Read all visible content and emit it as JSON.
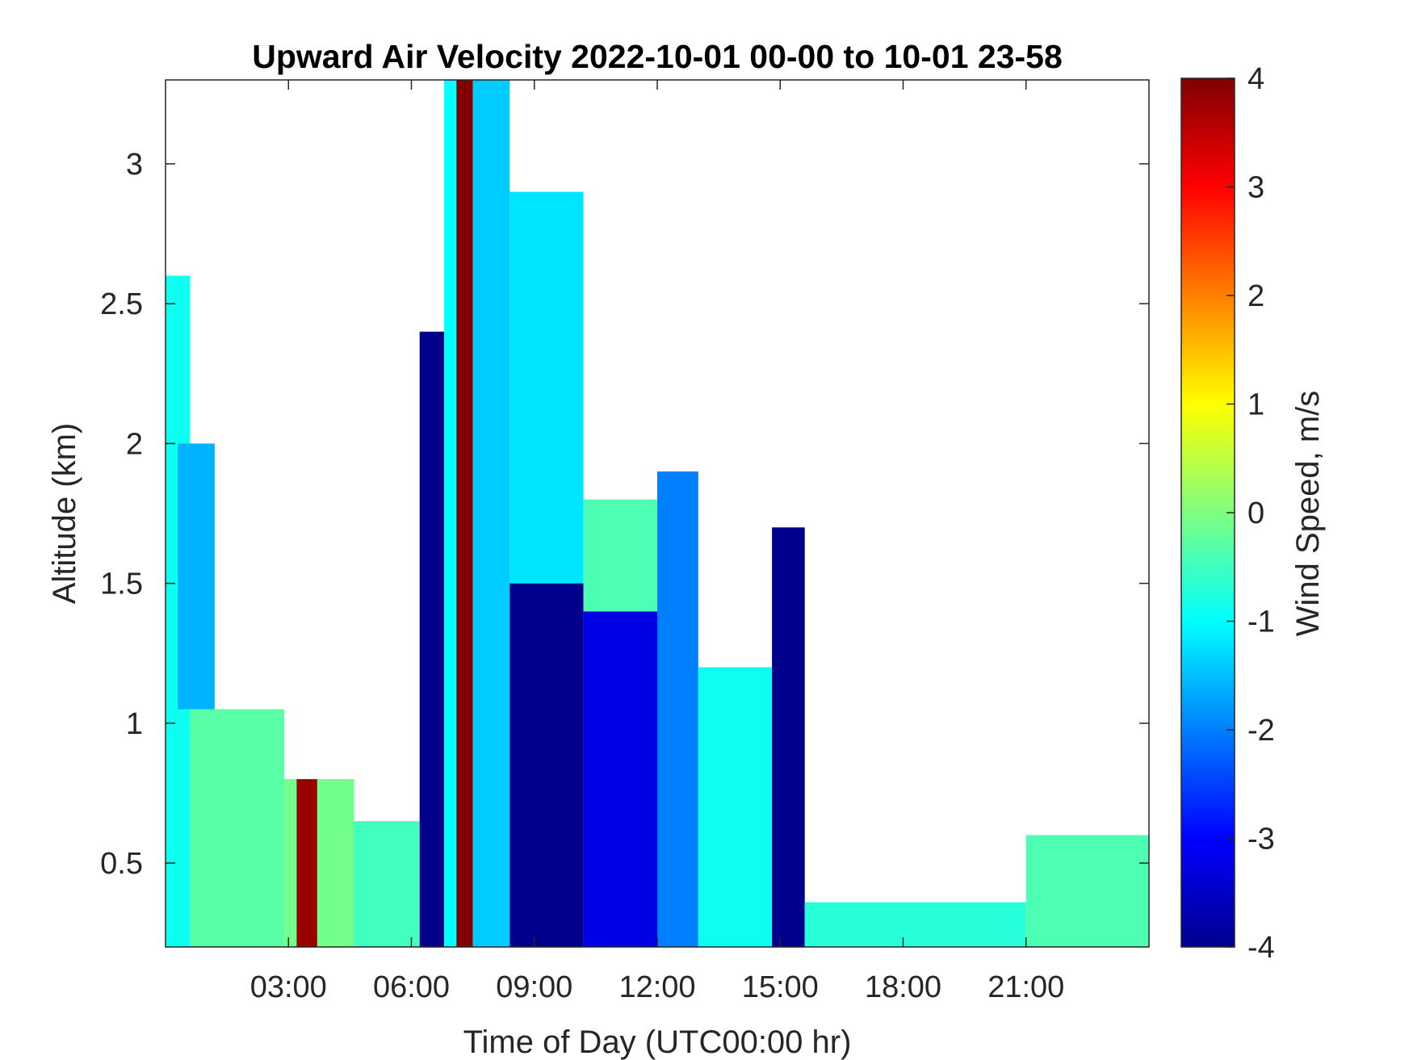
{
  "chart_data": {
    "type": "heatmap",
    "title": "Upward Air Velocity 2022-10-01 00-00 to 10-01 23-58",
    "xlabel": "Time of Day (UTC00:00 hr)",
    "ylabel": "Altitude (km)",
    "xlim_hours": [
      0,
      24
    ],
    "ylim_km": [
      0.2,
      3.3
    ],
    "x_ticks": [
      {
        "value": 3,
        "label": "03:00"
      },
      {
        "value": 6,
        "label": "06:00"
      },
      {
        "value": 9,
        "label": "09:00"
      },
      {
        "value": 12,
        "label": "12:00"
      },
      {
        "value": 15,
        "label": "15:00"
      },
      {
        "value": 18,
        "label": "18:00"
      },
      {
        "value": 21,
        "label": "21:00"
      }
    ],
    "y_ticks": [
      {
        "value": 0.5,
        "label": "0.5"
      },
      {
        "value": 1,
        "label": "1"
      },
      {
        "value": 1.5,
        "label": "1.5"
      },
      {
        "value": 2,
        "label": "2"
      },
      {
        "value": 2.5,
        "label": "2.5"
      },
      {
        "value": 3,
        "label": "3"
      }
    ],
    "colorbar": {
      "label": "Wind Speed, m/s",
      "range": [
        -4,
        4
      ],
      "colormap": "jet",
      "ticks": [
        {
          "value": 4,
          "label": "4"
        },
        {
          "value": 3,
          "label": "3"
        },
        {
          "value": 2,
          "label": "2"
        },
        {
          "value": 1,
          "label": "1"
        },
        {
          "value": 0,
          "label": "0"
        },
        {
          "value": -1,
          "label": "-1"
        },
        {
          "value": -2,
          "label": "-2"
        },
        {
          "value": -3,
          "label": "-3"
        },
        {
          "value": -4,
          "label": "-4"
        }
      ]
    },
    "grid": false,
    "regions": [
      {
        "t0": 0.0,
        "t1": 0.6,
        "h0": 0.2,
        "h1": 2.6,
        "v": -0.9
      },
      {
        "t0": 0.6,
        "t1": 2.9,
        "h0": 0.2,
        "h1": 1.05,
        "v": -0.3
      },
      {
        "t0": 0.3,
        "t1": 1.2,
        "h0": 1.05,
        "h1": 2.0,
        "v": -1.6
      },
      {
        "t0": 2.9,
        "t1": 4.6,
        "h0": 0.2,
        "h1": 0.8,
        "v": -0.1
      },
      {
        "t0": 3.2,
        "t1": 3.7,
        "h0": 0.2,
        "h1": 0.8,
        "v": 3.8
      },
      {
        "t0": 4.6,
        "t1": 6.2,
        "h0": 0.2,
        "h1": 0.65,
        "v": -0.5
      },
      {
        "t0": 6.2,
        "t1": 6.8,
        "h0": 0.2,
        "h1": 2.4,
        "v": -3.9
      },
      {
        "t0": 6.8,
        "t1": 7.1,
        "h0": 0.2,
        "h1": 3.3,
        "v": -1.0
      },
      {
        "t0": 7.1,
        "t1": 7.5,
        "h0": 0.2,
        "h1": 3.3,
        "v": 4.0
      },
      {
        "t0": 7.5,
        "t1": 8.4,
        "h0": 0.2,
        "h1": 3.3,
        "v": -1.4
      },
      {
        "t0": 8.4,
        "t1": 10.2,
        "h0": 0.2,
        "h1": 1.5,
        "v": -3.9
      },
      {
        "t0": 8.4,
        "t1": 10.2,
        "h0": 1.5,
        "h1": 2.9,
        "v": -1.2
      },
      {
        "t0": 10.2,
        "t1": 12.0,
        "h0": 0.2,
        "h1": 1.4,
        "v": -3.2
      },
      {
        "t0": 10.2,
        "t1": 12.0,
        "h0": 1.4,
        "h1": 1.8,
        "v": -0.4
      },
      {
        "t0": 12.0,
        "t1": 13.0,
        "h0": 0.2,
        "h1": 1.9,
        "v": -2.0
      },
      {
        "t0": 13.0,
        "t1": 14.8,
        "h0": 0.2,
        "h1": 1.2,
        "v": -0.9
      },
      {
        "t0": 14.8,
        "t1": 15.6,
        "h0": 0.2,
        "h1": 1.7,
        "v": -3.9
      },
      {
        "t0": 15.6,
        "t1": 21.0,
        "h0": 0.2,
        "h1": 0.36,
        "v": -0.7
      },
      {
        "t0": 21.0,
        "t1": 24.0,
        "h0": 0.2,
        "h1": 0.6,
        "v": -0.4
      }
    ]
  }
}
